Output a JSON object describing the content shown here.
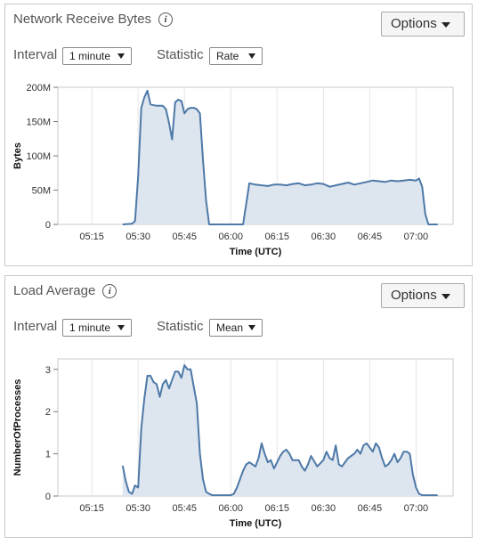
{
  "panels": [
    {
      "title": "Network Receive Bytes",
      "options_label": "Options",
      "interval_label": "Interval",
      "interval_value": "1 minute",
      "statistic_label": "Statistic",
      "statistic_value": "Rate"
    },
    {
      "title": "Load Average",
      "options_label": "Options",
      "interval_label": "Interval",
      "interval_value": "1 minute",
      "statistic_label": "Statistic",
      "statistic_value": "Mean"
    }
  ],
  "chart_data": [
    {
      "type": "area",
      "title": "",
      "xlabel": "Time (UTC)",
      "ylabel": "Bytes",
      "x_ticks": [
        "05:15",
        "05:30",
        "05:45",
        "06:00",
        "06:15",
        "06:30",
        "06:45",
        "07:00"
      ],
      "y_ticks": [
        "0",
        "50M",
        "100M",
        "150M",
        "200M"
      ],
      "ylim": [
        0,
        200000000
      ],
      "xlim": [
        "05:04",
        "07:12"
      ],
      "grid": "vertical",
      "color": "#4e79a7",
      "fill": "#dde5ef",
      "x": [
        "05:25",
        "05:28",
        "05:29",
        "05:30",
        "05:31",
        "05:32",
        "05:33",
        "05:34",
        "05:36",
        "05:38",
        "05:39",
        "05:40",
        "05:41",
        "05:42",
        "05:43",
        "05:44",
        "05:45",
        "05:46",
        "05:47",
        "05:48",
        "05:49",
        "05:50",
        "05:51",
        "05:52",
        "05:53",
        "05:54",
        "05:57",
        "06:00",
        "06:04",
        "06:05",
        "06:06",
        "06:08",
        "06:10",
        "06:12",
        "06:14",
        "06:16",
        "06:18",
        "06:20",
        "06:22",
        "06:24",
        "06:26",
        "06:28",
        "06:30",
        "06:32",
        "06:34",
        "06:36",
        "06:38",
        "06:40",
        "06:42",
        "06:44",
        "06:46",
        "06:48",
        "06:50",
        "06:52",
        "06:54",
        "06:56",
        "06:58",
        "07:00",
        "07:01",
        "07:02",
        "07:03",
        "07:04",
        "07:05",
        "07:07"
      ],
      "values": [
        0,
        1000000,
        5000000,
        70000000,
        170000000,
        185000000,
        195000000,
        175000000,
        173000000,
        173000000,
        168000000,
        148000000,
        124000000,
        178000000,
        182000000,
        180000000,
        162000000,
        168000000,
        170000000,
        170000000,
        168000000,
        162000000,
        95000000,
        35000000,
        0,
        0,
        0,
        0,
        0,
        30000000,
        60000000,
        58000000,
        57000000,
        56000000,
        58000000,
        58000000,
        57000000,
        59000000,
        60000000,
        57000000,
        58000000,
        60000000,
        59000000,
        55000000,
        57000000,
        59000000,
        61000000,
        58000000,
        60000000,
        62000000,
        64000000,
        63000000,
        62000000,
        64000000,
        63000000,
        64000000,
        65000000,
        64000000,
        67000000,
        55000000,
        15000000,
        0,
        0,
        0
      ]
    },
    {
      "type": "area",
      "title": "",
      "xlabel": "Time (UTC)",
      "ylabel": "NumberOfProcesses",
      "x_ticks": [
        "05:15",
        "05:30",
        "05:45",
        "06:00",
        "06:15",
        "06:30",
        "06:45",
        "07:00"
      ],
      "y_ticks": [
        "0",
        "1",
        "2",
        "3"
      ],
      "ylim": [
        0,
        3.25
      ],
      "xlim": [
        "05:04",
        "07:12"
      ],
      "grid": "vertical",
      "color": "#4e79a7",
      "fill": "#dde5ef",
      "x": [
        "05:25",
        "05:26",
        "05:27",
        "05:28",
        "05:29",
        "05:30",
        "05:31",
        "05:32",
        "05:33",
        "05:34",
        "05:35",
        "05:36",
        "05:37",
        "05:38",
        "05:39",
        "05:40",
        "05:41",
        "05:42",
        "05:43",
        "05:44",
        "05:45",
        "05:46",
        "05:47",
        "05:48",
        "05:49",
        "05:50",
        "05:51",
        "05:52",
        "05:53",
        "05:54",
        "05:55",
        "05:56",
        "05:58",
        "06:00",
        "06:01",
        "06:02",
        "06:04",
        "06:05",
        "06:06",
        "06:08",
        "06:09",
        "06:10",
        "06:11",
        "06:12",
        "06:13",
        "06:14",
        "06:16",
        "06:17",
        "06:18",
        "06:19",
        "06:20",
        "06:22",
        "06:23",
        "06:24",
        "06:25",
        "06:26",
        "06:28",
        "06:30",
        "06:31",
        "06:32",
        "06:33",
        "06:34",
        "06:35",
        "06:36",
        "06:37",
        "06:38",
        "06:39",
        "06:40",
        "06:41",
        "06:42",
        "06:43",
        "06:44",
        "06:46",
        "06:47",
        "06:48",
        "06:49",
        "06:50",
        "06:51",
        "06:52",
        "06:53",
        "06:54",
        "06:55",
        "06:56",
        "06:57",
        "06:58",
        "06:59",
        "07:00",
        "07:01",
        "07:02",
        "07:03",
        "07:04",
        "07:05",
        "07:06",
        "07:07"
      ],
      "values": [
        0.72,
        0.35,
        0.1,
        0.05,
        0.25,
        0.2,
        1.6,
        2.3,
        2.85,
        2.85,
        2.7,
        2.65,
        2.35,
        2.65,
        2.75,
        2.55,
        2.75,
        2.95,
        2.95,
        2.8,
        3.1,
        3.0,
        3.0,
        2.6,
        2.2,
        1.0,
        0.4,
        0.1,
        0.05,
        0.02,
        0.02,
        0.02,
        0.02,
        0.02,
        0.05,
        0.2,
        0.6,
        0.75,
        0.8,
        0.7,
        0.9,
        1.25,
        1.0,
        0.8,
        0.85,
        0.65,
        0.95,
        1.05,
        1.1,
        1.0,
        0.85,
        0.85,
        0.7,
        0.6,
        0.75,
        0.95,
        0.7,
        0.85,
        1.05,
        0.9,
        0.85,
        1.2,
        0.75,
        0.7,
        0.8,
        0.9,
        0.95,
        1.0,
        1.1,
        1.0,
        1.2,
        1.25,
        1.05,
        1.25,
        1.15,
        0.9,
        0.7,
        0.75,
        0.85,
        1.0,
        0.8,
        0.9,
        1.05,
        1.05,
        1.0,
        0.5,
        0.2,
        0.05,
        0.02,
        0.02,
        0.02,
        0.02,
        0.02,
        0.02
      ]
    }
  ]
}
